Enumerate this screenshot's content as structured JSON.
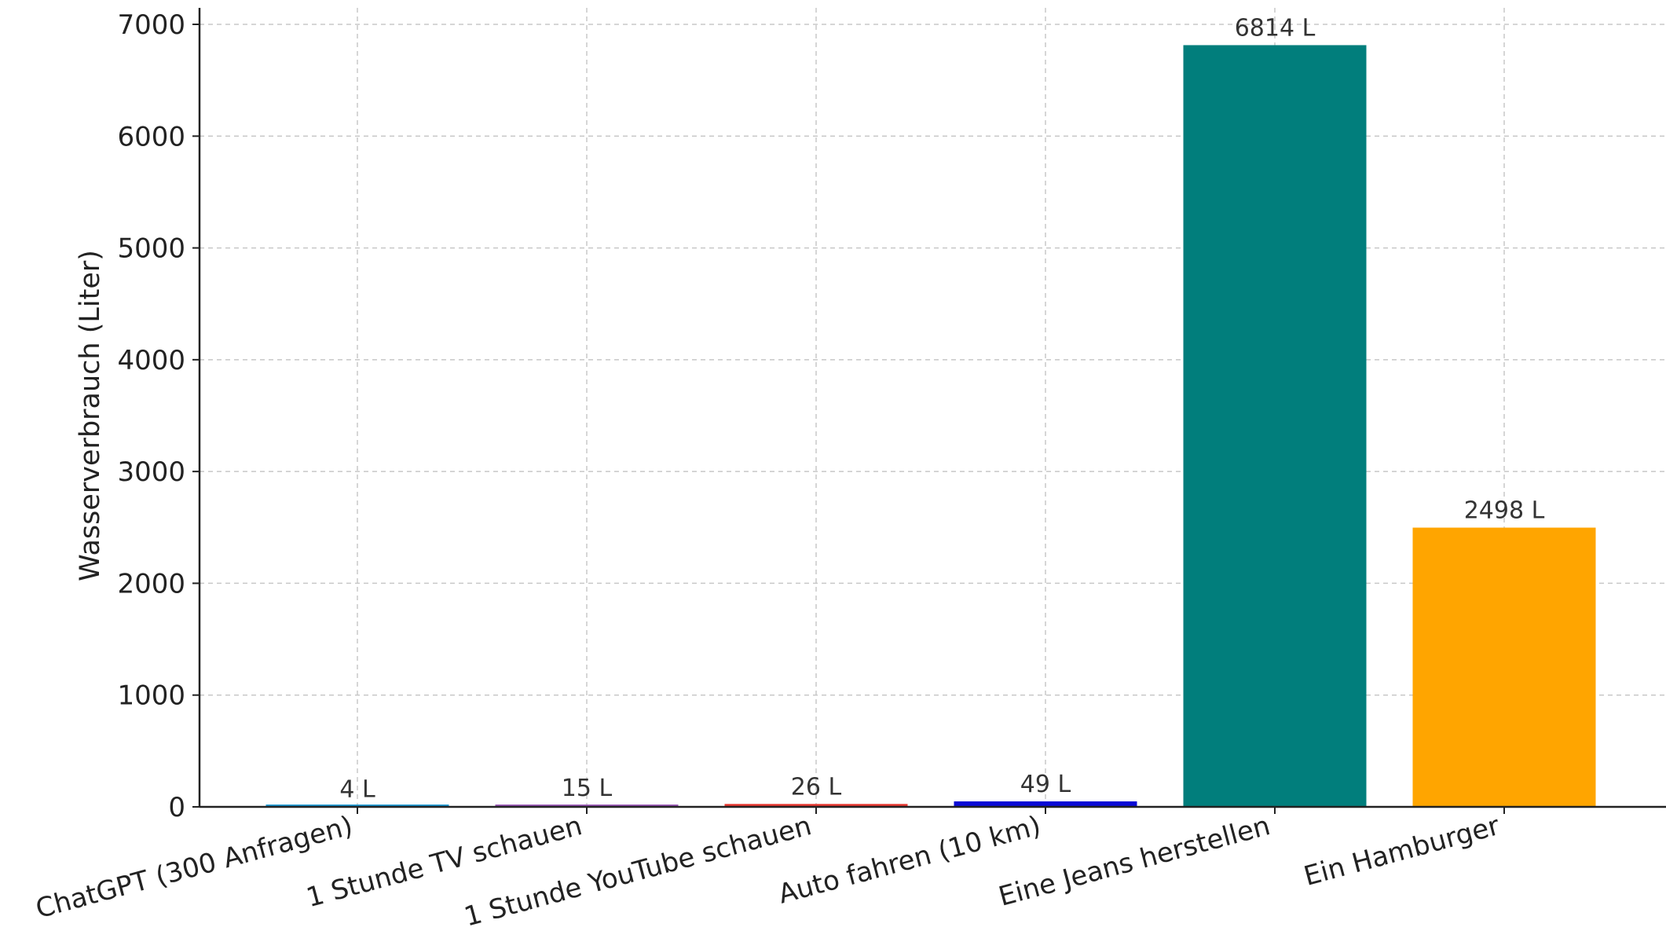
{
  "chart_data": {
    "type": "bar",
    "title": "",
    "xlabel": "",
    "ylabel": "Wasserverbrauch (Liter)",
    "categories": [
      "ChatGPT (300 Anfragen)",
      "1 Stunde TV schauen",
      "1 Stunde YouTube schauen",
      "Auto fahren (10 km)",
      "Eine Jeans herstellen",
      "Ein Hamburger"
    ],
    "values": [
      4,
      15,
      26,
      49,
      6814,
      2498
    ],
    "value_labels": [
      "4 L",
      "15 L",
      "26 L",
      "49 L",
      "6814 L",
      "2498 L"
    ],
    "colors": [
      "#1f9bd4",
      "#9b59b6",
      "#e8372f",
      "#0a0ad6",
      "#017e7c",
      "#ffa500"
    ],
    "ylim": [
      0,
      7000
    ],
    "yticks": [
      0,
      1000,
      2000,
      3000,
      4000,
      5000,
      6000,
      7000
    ],
    "grid": true
  }
}
